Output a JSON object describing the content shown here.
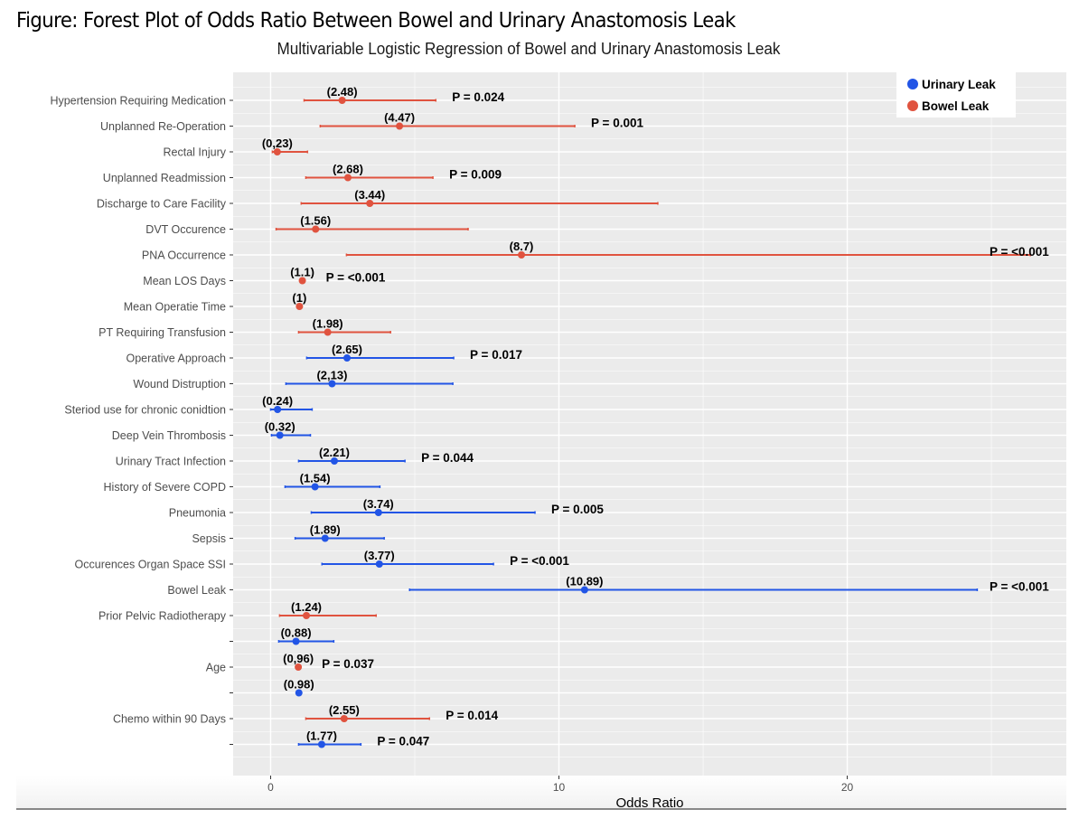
{
  "figure_title": "Figure: Forest Plot of Odds Ratio Between Bowel and Urinary Anastomosis Leak",
  "chart_data": {
    "type": "forest",
    "title": "Multivariable Logistic Regression of Bowel and Urinary Anastomosis Leak",
    "xlabel": "Odds Ratio",
    "ylabel": "",
    "xlim": [
      -1.3,
      27.6
    ],
    "xticks": [
      0,
      10,
      20
    ],
    "xtick_labels": [
      "0",
      "10",
      "20"
    ],
    "grid": true,
    "legend": {
      "position": "top-right",
      "entries": [
        {
          "name": "Urinary Leak",
          "color": "#2255e6"
        },
        {
          "name": "Bowel Leak",
          "color": "#e0533f"
        }
      ]
    },
    "series_colors": {
      "urinary": "#2255e6",
      "bowel": "#e0533f"
    },
    "rows": [
      {
        "label": "Hypertension Requiring Medication",
        "series": "bowel",
        "or": 2.48,
        "ci_low": 1.16,
        "ci_high": 5.73,
        "or_text": "(2.48)",
        "p_text": "P = 0.024"
      },
      {
        "label": "Unplanned Re-Operation",
        "series": "bowel",
        "or": 4.47,
        "ci_low": 1.72,
        "ci_high": 10.55,
        "or_text": "(4.47)",
        "p_text": "P = 0.001"
      },
      {
        "label": "Rectal Injury",
        "series": "bowel",
        "or": 0.23,
        "ci_low": 0.06,
        "ci_high": 1.28,
        "or_text": "(0,23)",
        "p_text": ""
      },
      {
        "label": "Unplanned Readmission",
        "series": "bowel",
        "or": 2.68,
        "ci_low": 1.22,
        "ci_high": 5.63,
        "or_text": "(2.68)",
        "p_text": "P = 0.009"
      },
      {
        "label": "Discharge to Care Facility",
        "series": "bowel",
        "or": 3.44,
        "ci_low": 1.06,
        "ci_high": 13.43,
        "or_text": "(3.44)",
        "p_text": ""
      },
      {
        "label": "DVT Occurence",
        "series": "bowel",
        "or": 1.56,
        "ci_low": 0.19,
        "ci_high": 6.85,
        "or_text": "(1.56)",
        "p_text": ""
      },
      {
        "label": "PNA Occurrence",
        "series": "bowel",
        "or": 8.7,
        "ci_low": 2.63,
        "ci_high": 26.35,
        "or_text": "(8.7)",
        "p_text": "P = <0.001"
      },
      {
        "label": "Mean LOS Days",
        "series": "bowel",
        "or": 1.1,
        "ci_low": null,
        "ci_high": null,
        "or_text": "(1.1)",
        "p_text": "P = <0.001"
      },
      {
        "label": "Mean Operatie Time",
        "series": "bowel",
        "or": 1.0,
        "ci_low": null,
        "ci_high": null,
        "or_text": "(1)",
        "p_text": ""
      },
      {
        "label": "PT Requiring Transfusion",
        "series": "bowel",
        "or": 1.98,
        "ci_low": 0.97,
        "ci_high": 4.16,
        "or_text": "(1.98)",
        "p_text": ""
      },
      {
        "label": "Operative Approach",
        "series": "urinary",
        "or": 2.65,
        "ci_low": 1.25,
        "ci_high": 6.35,
        "or_text": "(2.65)",
        "p_text": "P = 0.017"
      },
      {
        "label": "Wound Distruption",
        "series": "urinary",
        "or": 2.13,
        "ci_low": 0.53,
        "ci_high": 6.32,
        "or_text": "(2,13)",
        "p_text": ""
      },
      {
        "label": "Steriod use for chronic conidtion",
        "series": "urinary",
        "or": 0.24,
        "ci_low": 0.0,
        "ci_high": 1.44,
        "or_text": "(0.24)",
        "p_text": ""
      },
      {
        "label": "Deep Vein Thrombosis",
        "series": "urinary",
        "or": 0.32,
        "ci_low": 0.03,
        "ci_high": 1.38,
        "or_text": "(0.32)",
        "p_text": ""
      },
      {
        "label": "Urinary Tract Infection",
        "series": "urinary",
        "or": 2.21,
        "ci_low": 0.97,
        "ci_high": 4.66,
        "or_text": "(2.21)",
        "p_text": "P = 0.044"
      },
      {
        "label": "History of Severe COPD",
        "series": "urinary",
        "or": 1.54,
        "ci_low": 0.5,
        "ci_high": 3.79,
        "or_text": "(1.54)",
        "p_text": ""
      },
      {
        "label": "Pneumonia",
        "series": "urinary",
        "or": 3.74,
        "ci_low": 1.41,
        "ci_high": 9.17,
        "or_text": "(3.74)",
        "p_text": "P = 0.005"
      },
      {
        "label": "Sepsis",
        "series": "urinary",
        "or": 1.89,
        "ci_low": 0.85,
        "ci_high": 3.94,
        "or_text": "(1.89)",
        "p_text": ""
      },
      {
        "label": "Occurences Organ Space SSI",
        "series": "urinary",
        "or": 3.77,
        "ci_low": 1.78,
        "ci_high": 7.73,
        "or_text": "(3.77)",
        "p_text": "P = <0.001"
      },
      {
        "label": "Bowel Leak",
        "series": "urinary",
        "or": 10.89,
        "ci_low": 4.82,
        "ci_high": 24.51,
        "or_text": "(10.89)",
        "p_text": "P = <0.001"
      },
      {
        "label": "Prior Pelvic Radiotherapy",
        "series": "bowel",
        "or": 1.24,
        "ci_low": 0.31,
        "ci_high": 3.66,
        "or_text": "(1.24)",
        "p_text": ""
      },
      {
        "label": "",
        "series": "urinary",
        "or": 0.88,
        "ci_low": 0.28,
        "ci_high": 2.19,
        "or_text": "(0.88)",
        "p_text": ""
      },
      {
        "label": "Age",
        "series": "bowel",
        "or": 0.96,
        "ci_low": null,
        "ci_high": null,
        "or_text": "(0,96)",
        "p_text": "P = 0.037"
      },
      {
        "label": "",
        "series": "urinary",
        "or": 0.98,
        "ci_low": null,
        "ci_high": null,
        "or_text": "(0.98)",
        "p_text": ""
      },
      {
        "label": "Chemo within 90 Days",
        "series": "bowel",
        "or": 2.55,
        "ci_low": 1.22,
        "ci_high": 5.51,
        "or_text": "(2.55)",
        "p_text": "P = 0.014"
      },
      {
        "label": "",
        "series": "urinary",
        "or": 1.77,
        "ci_low": 0.97,
        "ci_high": 3.13,
        "or_text": "(1.77)",
        "p_text": "P = 0.047"
      }
    ]
  }
}
